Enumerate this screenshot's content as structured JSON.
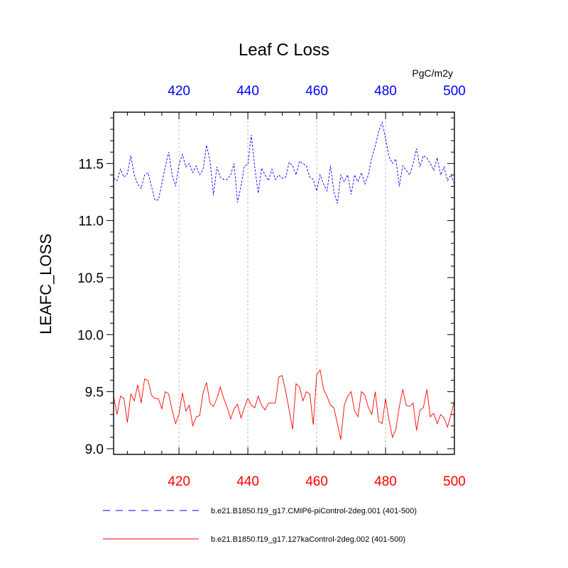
{
  "chart_data": {
    "type": "line",
    "title": "Leaf C Loss",
    "units": "PgC/m2y",
    "ylabel": "LEAFC_LOSS",
    "xlim": [
      401,
      500
    ],
    "ylim": [
      8.95,
      11.95
    ],
    "yticks": [
      9.0,
      9.5,
      10.0,
      10.5,
      11.0,
      11.5
    ],
    "ytick_labels": [
      "9.0",
      "9.5",
      "10.0",
      "10.5",
      "11.0",
      "11.5"
    ],
    "xticks": [
      420,
      440,
      460,
      480,
      500
    ],
    "xtick_labels": [
      "420",
      "440",
      "460",
      "480",
      "500"
    ],
    "grid_x": true,
    "series": [
      {
        "name": "b.e21.B1850.f19_g17.CMIP6-piControl-2deg.001 (401-500)",
        "color": "#0000ff",
        "dash": "dashed",
        "axis": "top",
        "x_start": 401,
        "values": [
          11.37,
          11.35,
          11.45,
          11.38,
          11.41,
          11.57,
          11.4,
          11.32,
          11.28,
          11.4,
          11.42,
          11.3,
          11.18,
          11.18,
          11.32,
          11.47,
          11.6,
          11.4,
          11.3,
          11.49,
          11.58,
          11.47,
          11.5,
          11.42,
          11.48,
          11.4,
          11.45,
          11.66,
          11.53,
          11.22,
          11.47,
          11.38,
          11.36,
          11.36,
          11.4,
          11.5,
          11.16,
          11.3,
          11.48,
          11.49,
          11.75,
          11.47,
          11.24,
          11.46,
          11.4,
          11.35,
          11.45,
          11.36,
          11.4,
          11.37,
          11.38,
          11.51,
          11.48,
          11.4,
          11.52,
          11.5,
          11.48,
          11.38,
          11.36,
          11.26,
          11.4,
          11.32,
          11.26,
          11.48,
          11.25,
          11.15,
          11.4,
          11.34,
          11.4,
          11.23,
          11.4,
          11.34,
          11.42,
          11.32,
          11.4,
          11.55,
          11.65,
          11.78,
          11.86,
          11.72,
          11.56,
          11.5,
          11.54,
          11.3,
          11.48,
          11.44,
          11.4,
          11.5,
          11.63,
          11.47,
          11.57,
          11.55,
          11.5,
          11.44,
          11.55,
          11.4,
          11.47,
          11.35,
          11.4,
          11.32
        ]
      },
      {
        "name": "b.e21.B1850.f19_g17.127kaControl-2deg.002 (401-500)",
        "color": "#ff0000",
        "dash": "solid",
        "axis": "bottom",
        "x_start": 401,
        "values": [
          9.46,
          9.3,
          9.46,
          9.44,
          9.23,
          9.48,
          9.42,
          9.56,
          9.4,
          9.61,
          9.6,
          9.47,
          9.44,
          9.44,
          9.35,
          9.5,
          9.48,
          9.34,
          9.22,
          9.3,
          9.49,
          9.33,
          9.38,
          9.2,
          9.28,
          9.29,
          9.49,
          9.58,
          9.4,
          9.37,
          9.44,
          9.54,
          9.44,
          9.36,
          9.26,
          9.35,
          9.39,
          9.27,
          9.36,
          9.44,
          9.38,
          9.36,
          9.46,
          9.38,
          9.34,
          9.4,
          9.4,
          9.4,
          9.63,
          9.64,
          9.5,
          9.34,
          9.17,
          9.57,
          9.54,
          9.42,
          9.5,
          9.48,
          9.21,
          9.65,
          9.69,
          9.52,
          9.46,
          9.38,
          9.36,
          9.22,
          9.08,
          9.38,
          9.46,
          9.5,
          9.33,
          9.28,
          9.5,
          9.47,
          9.36,
          9.3,
          9.5,
          9.24,
          9.22,
          9.44,
          9.25,
          9.1,
          9.17,
          9.37,
          9.52,
          9.38,
          9.37,
          9.4,
          9.16,
          9.34,
          9.36,
          9.52,
          9.28,
          9.31,
          9.22,
          9.3,
          9.27,
          9.19,
          9.3,
          9.42
        ]
      }
    ]
  }
}
